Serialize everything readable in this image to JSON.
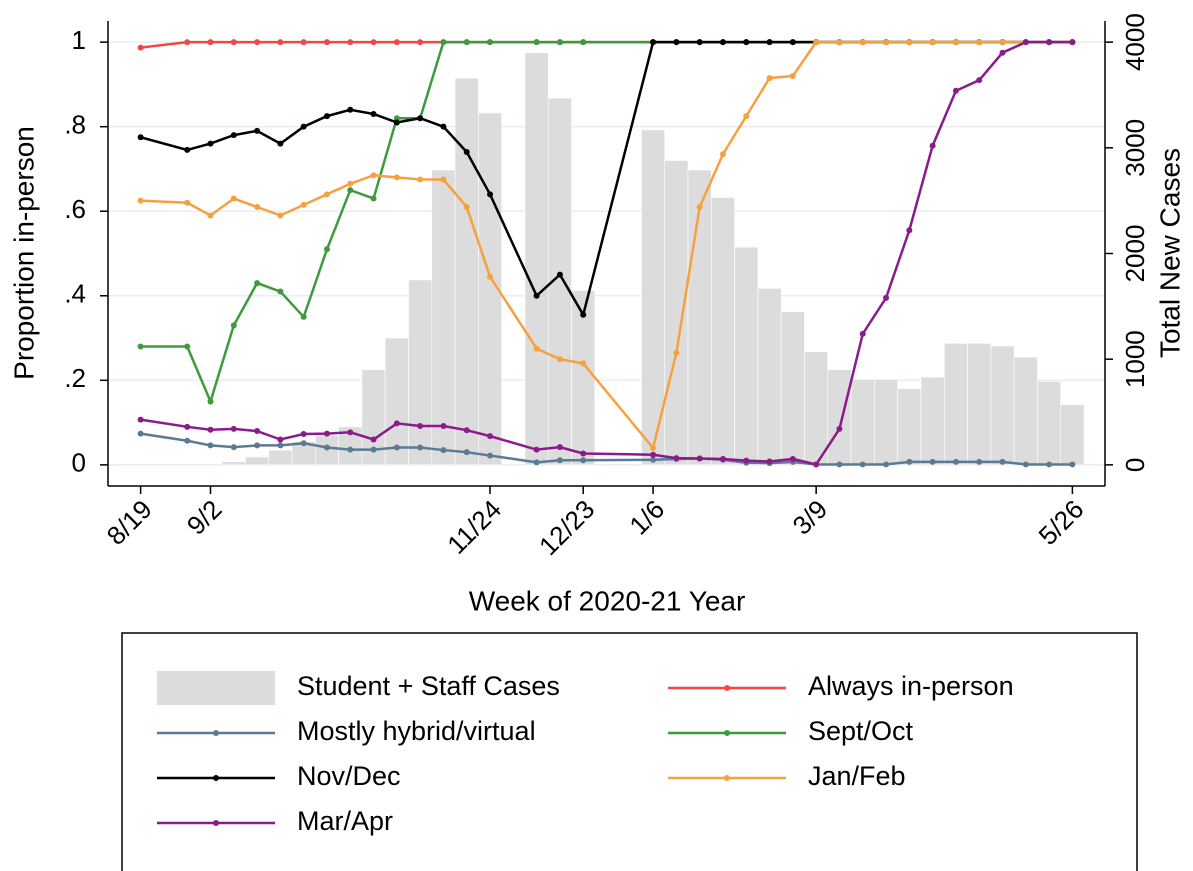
{
  "chart_data": {
    "type": "combo",
    "x_label": "Week of 2020-21 Year",
    "y_label": "Proportion in-person",
    "y2_label": "Total New Cases",
    "xlim": [
      -1.4,
      41.4
    ],
    "xticks": [
      {
        "value": 0,
        "label": "8/19"
      },
      {
        "value": 3,
        "label": "9/2"
      },
      {
        "value": 15,
        "label": "11/24"
      },
      {
        "value": 19,
        "label": "12/23"
      },
      {
        "value": 22,
        "label": "1/6"
      },
      {
        "value": 29,
        "label": "3/9"
      },
      {
        "value": 40,
        "label": "5/26"
      }
    ],
    "ylim": [
      -0.05,
      1.05
    ],
    "yticks": [
      0,
      {
        "value": 0.2,
        "label": ".2"
      },
      {
        "value": 0.4,
        "label": ".4"
      },
      {
        "value": 0.6,
        "label": ".6"
      },
      {
        "value": 0.8,
        "label": ".8"
      },
      1
    ],
    "y2lim": [
      -200,
      4200
    ],
    "y2ticks": [
      0,
      1000,
      2000,
      3000,
      4000
    ],
    "grid": true,
    "legend": "bottom",
    "x": [
      0,
      2,
      3,
      4,
      5,
      6,
      7,
      8,
      9,
      10,
      11,
      12,
      13,
      14,
      15,
      17,
      18,
      19,
      22,
      23,
      24,
      25,
      26,
      27,
      28,
      29,
      30,
      31,
      32,
      33,
      34,
      35,
      36,
      37,
      38,
      39,
      40
    ],
    "series": [
      {
        "name": "Student + Staff Cases",
        "type": "bar",
        "axis": "y2",
        "color": "#dcdcdc",
        "x": [
          4,
          5,
          6,
          7,
          8,
          9,
          10,
          11,
          12,
          13,
          14,
          15,
          17,
          18,
          19,
          22,
          23,
          24,
          25,
          26,
          27,
          28,
          29,
          30,
          31,
          32,
          33,
          34,
          35,
          36,
          37,
          38,
          39,
          40
        ],
        "values": [
          30,
          75,
          140,
          220,
          280,
          360,
          900,
          1200,
          1750,
          2790,
          3660,
          3330,
          3900,
          3470,
          1650,
          3170,
          2880,
          2790,
          2530,
          2060,
          1670,
          1450,
          1070,
          900,
          810,
          810,
          720,
          830,
          1150,
          1150,
          1125,
          1020,
          790,
          570
        ]
      },
      {
        "name": "Always in-person",
        "type": "line",
        "color": "#f04848",
        "values": [
          0.987,
          1,
          1,
          1,
          1,
          1,
          1,
          1,
          1,
          1,
          1,
          1,
          1,
          1,
          1,
          1,
          1,
          1,
          1,
          1,
          1,
          1,
          1,
          1,
          1,
          1,
          1,
          1,
          1,
          1,
          1,
          1,
          1,
          1,
          1,
          1,
          1
        ]
      },
      {
        "name": "Mostly hybrid/virtual",
        "type": "line",
        "color": "#5a7a96",
        "values": [
          0.074,
          0.057,
          0.046,
          0.042,
          0.046,
          0.046,
          0.051,
          0.041,
          0.036,
          0.036,
          0.041,
          0.041,
          0.035,
          0.03,
          0.022,
          0.006,
          0.011,
          0.011,
          0.012,
          0.014,
          0.015,
          0.012,
          0.005,
          0.004,
          0.007,
          0.001,
          0.001,
          0.001,
          0.001,
          0.007,
          0.007,
          0.007,
          0.007,
          0.007,
          0.001,
          0.001,
          0.001
        ]
      },
      {
        "name": "Sept/Oct",
        "type": "line",
        "color": "#3d9a3d",
        "values": [
          0.28,
          0.28,
          0.15,
          0.33,
          0.43,
          0.41,
          0.35,
          0.51,
          0.65,
          0.63,
          0.82,
          0.82,
          1,
          1,
          1,
          1,
          1,
          1,
          1,
          1,
          1,
          1,
          1,
          1,
          1,
          1,
          1,
          1,
          1,
          1,
          1,
          1,
          1,
          1,
          1,
          1,
          1
        ]
      },
      {
        "name": "Nov/Dec",
        "type": "line",
        "color": "#000000",
        "values": [
          0.775,
          0.745,
          0.76,
          0.78,
          0.79,
          0.76,
          0.8,
          0.825,
          0.84,
          0.83,
          0.81,
          0.82,
          0.8,
          0.74,
          0.64,
          0.4,
          0.45,
          0.355,
          1,
          1,
          1,
          1,
          1,
          1,
          1,
          1,
          1,
          1,
          1,
          1,
          1,
          1,
          1,
          1,
          1,
          1,
          1
        ]
      },
      {
        "name": "Jan/Feb",
        "type": "line",
        "color": "#f7a040",
        "values": [
          0.625,
          0.62,
          0.59,
          0.63,
          0.61,
          0.59,
          0.615,
          0.64,
          0.665,
          0.685,
          0.68,
          0.675,
          0.675,
          0.61,
          0.445,
          0.275,
          0.25,
          0.24,
          0.04,
          0.265,
          0.61,
          0.735,
          0.825,
          0.915,
          0.92,
          1,
          1,
          1,
          1,
          1,
          1,
          1,
          1,
          1,
          1,
          1,
          1
        ]
      },
      {
        "name": "Mar/Apr",
        "type": "line",
        "color": "#8b1a8b",
        "values": [
          0.107,
          0.09,
          0.083,
          0.085,
          0.08,
          0.06,
          0.073,
          0.074,
          0.077,
          0.06,
          0.098,
          0.092,
          0.092,
          0.082,
          0.068,
          0.036,
          0.042,
          0.027,
          0.024,
          0.016,
          0.015,
          0.014,
          0.01,
          0.008,
          0.014,
          0.001,
          0.085,
          0.31,
          0.395,
          0.555,
          0.755,
          0.885,
          0.91,
          0.975,
          1,
          1,
          1
        ]
      }
    ]
  }
}
